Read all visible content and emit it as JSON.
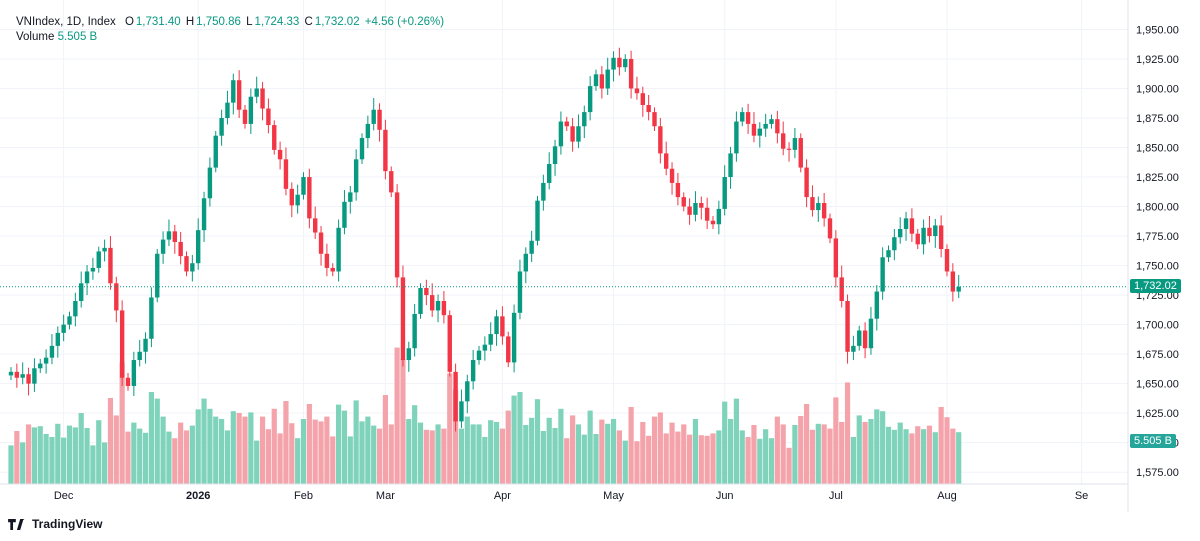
{
  "legend": {
    "symbol": "VNIndex, 1D, Index",
    "o_label": "O",
    "o_value": "1,731.40",
    "h_label": "H",
    "h_value": "1,750.86",
    "l_label": "L",
    "l_value": "1,724.33",
    "c_label": "C",
    "c_value": "1,732.02",
    "change": "+4.56 (+0.26%)",
    "volume_label": "Volume",
    "volume_value": "5.505 B"
  },
  "price_badge": "1,732.02",
  "volume_badge": "5.505 B",
  "brand": "TradingView",
  "colors": {
    "up": "#089981",
    "down": "#f23645",
    "up_vol": "#7fd3bb",
    "down_vol": "#f5a3ab",
    "last_line": "#089981",
    "grid": "#f0f3fa"
  },
  "chart_data": {
    "type": "candlestick",
    "ylim": [
      1565,
      1958
    ],
    "y_ticks": [
      "1,950.00",
      "1,925.00",
      "1,900.00",
      "1,875.00",
      "1,850.00",
      "1,825.00",
      "1,800.00",
      "1,775.00",
      "1,750.00",
      "1,725.00",
      "1,700.00",
      "1,675.00",
      "1,650.00",
      "1,625.00",
      "1,600.00",
      "1,575.00"
    ],
    "y_tick_values": [
      1950,
      1925,
      1900,
      1875,
      1850,
      1825,
      1800,
      1775,
      1750,
      1725,
      1700,
      1675,
      1650,
      1625,
      1600,
      1575
    ],
    "x_ticks": [
      "Dec",
      "2026",
      "Feb",
      "Mar",
      "Apr",
      "May",
      "Jun",
      "Jul",
      "Aug",
      "Se"
    ],
    "x_tick_index": [
      9,
      32,
      50,
      64,
      84,
      103,
      122,
      141,
      160,
      183
    ],
    "last_close": 1732.02,
    "close": [
      1660,
      1655,
      1658,
      1650,
      1663,
      1667,
      1672,
      1682,
      1693,
      1700,
      1707,
      1720,
      1735,
      1745,
      1748,
      1762,
      1765,
      1735,
      1712,
      1655,
      1648,
      1670,
      1677,
      1688,
      1723,
      1760,
      1772,
      1779,
      1770,
      1758,
      1745,
      1752,
      1780,
      1807,
      1833,
      1860,
      1875,
      1888,
      1907,
      1882,
      1870,
      1893,
      1900,
      1883,
      1869,
      1848,
      1840,
      1815,
      1801,
      1810,
      1825,
      1790,
      1778,
      1760,
      1748,
      1745,
      1782,
      1804,
      1812,
      1840,
      1858,
      1870,
      1882,
      1865,
      1830,
      1812,
      1740,
      1670,
      1680,
      1709,
      1731,
      1725,
      1712,
      1720,
      1708,
      1660,
      1618,
      1635,
      1652,
      1670,
      1678,
      1683,
      1692,
      1707,
      1690,
      1668,
      1710,
      1745,
      1760,
      1771,
      1805,
      1820,
      1836,
      1851,
      1872,
      1868,
      1855,
      1868,
      1880,
      1902,
      1912,
      1900,
      1916,
      1926,
      1918,
      1925,
      1900,
      1896,
      1886,
      1880,
      1868,
      1845,
      1832,
      1820,
      1808,
      1800,
      1793,
      1803,
      1799,
      1788,
      1785,
      1798,
      1825,
      1845,
      1872,
      1880,
      1870,
      1860,
      1866,
      1870,
      1874,
      1862,
      1849,
      1848,
      1858,
      1833,
      1808,
      1797,
      1803,
      1790,
      1773,
      1740,
      1720,
      1677,
      1682,
      1695,
      1680,
      1705,
      1728,
      1757,
      1763,
      1774,
      1781,
      1790,
      1777,
      1768,
      1782,
      1775,
      1784,
      1764,
      1745,
      1728,
      1732
    ]
  }
}
